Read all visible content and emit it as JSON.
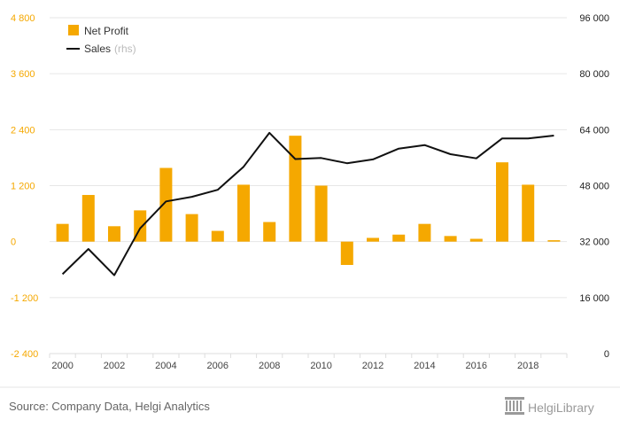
{
  "chart_data": {
    "type": "bar+line",
    "x": [
      2000,
      2001,
      2002,
      2003,
      2004,
      2005,
      2006,
      2007,
      2008,
      2009,
      2010,
      2011,
      2012,
      2013,
      2014,
      2015,
      2016,
      2017,
      2018,
      2019
    ],
    "x_tick_labels": [
      "2000",
      "2002",
      "2004",
      "2006",
      "2008",
      "2010",
      "2012",
      "2014",
      "2016",
      "2018"
    ],
    "series": [
      {
        "name": "Net Profit",
        "type": "bar",
        "axis": "left",
        "color": "#f5a800",
        "values": [
          380,
          1000,
          330,
          670,
          1580,
          590,
          230,
          1220,
          420,
          2270,
          1200,
          -500,
          80,
          150,
          380,
          120,
          60,
          1700,
          1220,
          30
        ]
      },
      {
        "name": "Sales",
        "name_note": "(rhs)",
        "type": "line",
        "axis": "right",
        "color": "#111111",
        "values": [
          22700,
          29900,
          22400,
          35800,
          43500,
          44800,
          46800,
          53400,
          63100,
          55600,
          55900,
          54400,
          55500,
          58600,
          59600,
          57000,
          55800,
          61500,
          61500,
          62300
        ]
      }
    ],
    "y_left": {
      "range": [
        -2400,
        4800
      ],
      "ticks": [
        -2400,
        -1200,
        0,
        1200,
        2400,
        3600,
        4800
      ],
      "tick_labels": [
        "-2 400",
        "-1 200",
        "0",
        "1 200",
        "2 400",
        "3 600",
        "4 800"
      ]
    },
    "y_right": {
      "range": [
        0,
        96000
      ],
      "ticks": [
        0,
        16000,
        32000,
        48000,
        64000,
        80000,
        96000
      ],
      "tick_labels": [
        "0",
        "16 000",
        "32 000",
        "48 000",
        "64 000",
        "80 000",
        "96 000"
      ]
    },
    "grid": true,
    "legend_position": "top-left"
  },
  "legend": {
    "net_profit": "Net Profit",
    "sales": "Sales",
    "sales_note": "(rhs)"
  },
  "footer": {
    "source": "Source: Company Data, Helgi Analytics",
    "brand": "HelgiLibrary"
  },
  "colors": {
    "bar": "#f5a800",
    "line": "#111111",
    "grid": "#e6e6e6",
    "brand": "#9a9a9a"
  }
}
